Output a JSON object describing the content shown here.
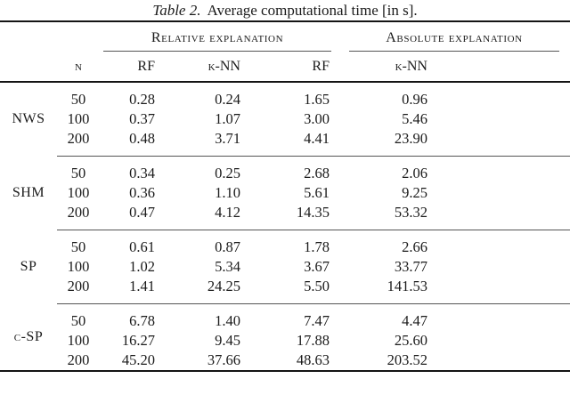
{
  "title": {
    "label": "Table 2.",
    "text": "Average computational time [in s]."
  },
  "table": {
    "column_groups": [
      {
        "label": "Relative explanation"
      },
      {
        "label": "Absolute explanation"
      }
    ],
    "n_header": "n",
    "method_headers": [
      "RF",
      "k-NN",
      "RF",
      "k-NN"
    ],
    "groups": [
      {
        "label": "NWS",
        "rows": [
          {
            "n": "50",
            "values": [
              "0.28",
              "0.24",
              "1.65",
              "0.96"
            ]
          },
          {
            "n": "100",
            "values": [
              "0.37",
              "1.07",
              "3.00",
              "5.46"
            ]
          },
          {
            "n": "200",
            "values": [
              "0.48",
              "3.71",
              "4.41",
              "23.90"
            ]
          }
        ]
      },
      {
        "label": "SHM",
        "rows": [
          {
            "n": "50",
            "values": [
              "0.34",
              "0.25",
              "2.68",
              "2.06"
            ]
          },
          {
            "n": "100",
            "values": [
              "0.36",
              "1.10",
              "5.61",
              "9.25"
            ]
          },
          {
            "n": "200",
            "values": [
              "0.47",
              "4.12",
              "14.35",
              "53.32"
            ]
          }
        ]
      },
      {
        "label": "SP",
        "rows": [
          {
            "n": "50",
            "values": [
              "0.61",
              "0.87",
              "1.78",
              "2.66"
            ]
          },
          {
            "n": "100",
            "values": [
              "1.02",
              "5.34",
              "3.67",
              "33.77"
            ]
          },
          {
            "n": "200",
            "values": [
              "1.41",
              "24.25",
              "5.50",
              "141.53"
            ]
          }
        ]
      },
      {
        "label": "c-SP",
        "rows": [
          {
            "n": "50",
            "values": [
              "6.78",
              "1.40",
              "7.47",
              "4.47"
            ]
          },
          {
            "n": "100",
            "values": [
              "16.27",
              "9.45",
              "17.88",
              "25.60"
            ]
          },
          {
            "n": "200",
            "values": [
              "45.20",
              "37.66",
              "48.63",
              "203.52"
            ]
          }
        ]
      }
    ]
  }
}
